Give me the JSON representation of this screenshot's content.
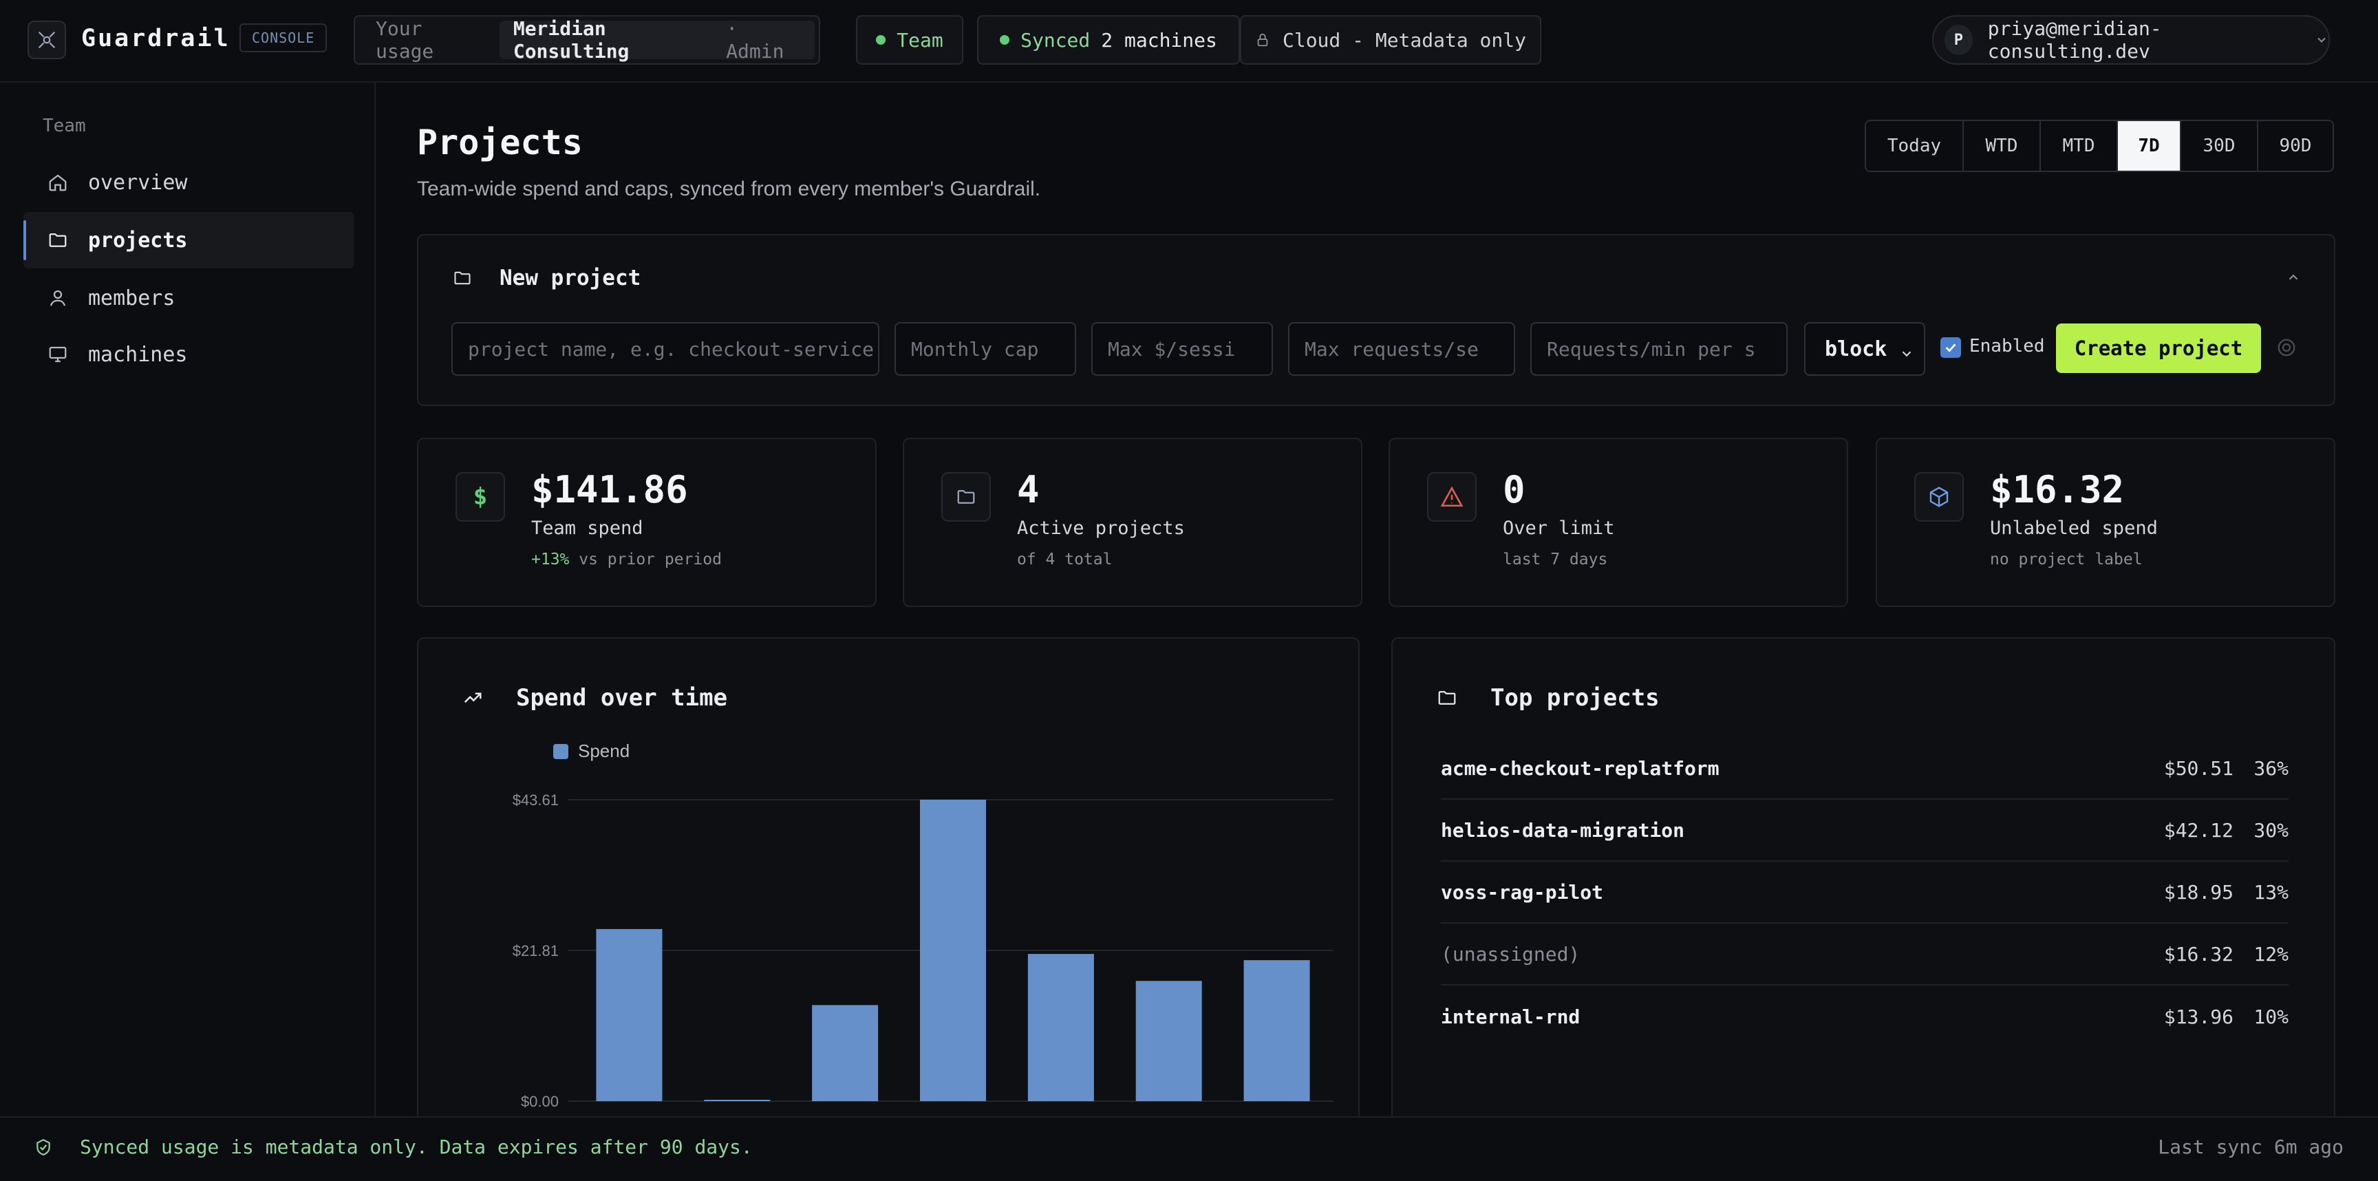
{
  "app": {
    "brand": "Guardrail",
    "badge": "CONSOLE"
  },
  "topbar": {
    "usage_label": "Your usage",
    "org_name": "Meridian Consulting",
    "org_role": "· Admin",
    "team_label": "Team",
    "synced_label": "Synced",
    "synced_count": "2 machines",
    "cloud_label": "Cloud - Metadata only",
    "user_initial": "P",
    "user_email": "priya@meridian-consulting.dev"
  },
  "sidebar": {
    "heading": "Team",
    "items": [
      {
        "label": "overview",
        "icon": "home-icon"
      },
      {
        "label": "projects",
        "icon": "folder-icon",
        "active": true
      },
      {
        "label": "members",
        "icon": "user-icon"
      },
      {
        "label": "machines",
        "icon": "monitor-icon"
      }
    ]
  },
  "page": {
    "title": "Projects",
    "subtitle": "Team-wide spend and caps, synced from every member's Guardrail."
  },
  "ranges": [
    "Today",
    "WTD",
    "MTD",
    "7D",
    "30D",
    "90D"
  ],
  "selected_range": "7D",
  "new_project": {
    "title": "New project",
    "name_placeholder": "project name, e.g. checkout-service",
    "cap_placeholder": "Monthly cap",
    "session_placeholder": "Max $/sessi",
    "requests_placeholder": "Max requests/se",
    "rpm_placeholder": "Requests/min per s",
    "action_value": "block",
    "enabled_label": "Enabled",
    "enabled": true,
    "create_label": "Create project"
  },
  "stats": [
    {
      "value": "$141.86",
      "label": "Team spend",
      "delta": "+13%",
      "sub": "vs prior period",
      "icon": "dollar-icon"
    },
    {
      "value": "4",
      "label": "Active projects",
      "sub": "of 4 total",
      "icon": "folder-icon"
    },
    {
      "value": "0",
      "label": "Over limit",
      "sub": "last 7 days",
      "icon": "warning-icon"
    },
    {
      "value": "$16.32",
      "label": "Unlabeled spend",
      "sub": "no project label",
      "icon": "cube-icon"
    }
  ],
  "spend_chart": {
    "title": "Spend over time",
    "icon": "trend-up-icon"
  },
  "chart_data": {
    "type": "bar",
    "title": "Spend over time",
    "series": [
      {
        "name": "Spend",
        "values": [
          24.9,
          0.2,
          13.9,
          43.61,
          21.3,
          17.4,
          20.4
        ]
      }
    ],
    "y_ticks": [
      "$43.61",
      "$21.81",
      "$0.00"
    ],
    "ylim": [
      0,
      43.61
    ],
    "color": "#6690c9",
    "grid": true,
    "legend": "top-left"
  },
  "top_projects": {
    "title": "Top projects",
    "rows": [
      {
        "name": "acme-checkout-replatform",
        "amount": "$50.51",
        "pct": "36%"
      },
      {
        "name": "helios-data-migration",
        "amount": "$42.12",
        "pct": "30%"
      },
      {
        "name": "voss-rag-pilot",
        "amount": "$18.95",
        "pct": "13%"
      },
      {
        "name": "(unassigned)",
        "amount": "$16.32",
        "pct": "12%",
        "muted": true
      },
      {
        "name": "internal-rnd",
        "amount": "$13.96",
        "pct": "10%"
      }
    ]
  },
  "footer": {
    "notice": "Synced usage is metadata only. Data expires after 90 days.",
    "last_sync": "Last sync 6m ago"
  },
  "colors": {
    "accent": "#b7ef4b",
    "bar": "#6690c9",
    "ok": "#5fcf75",
    "warn": "#e0604f"
  }
}
